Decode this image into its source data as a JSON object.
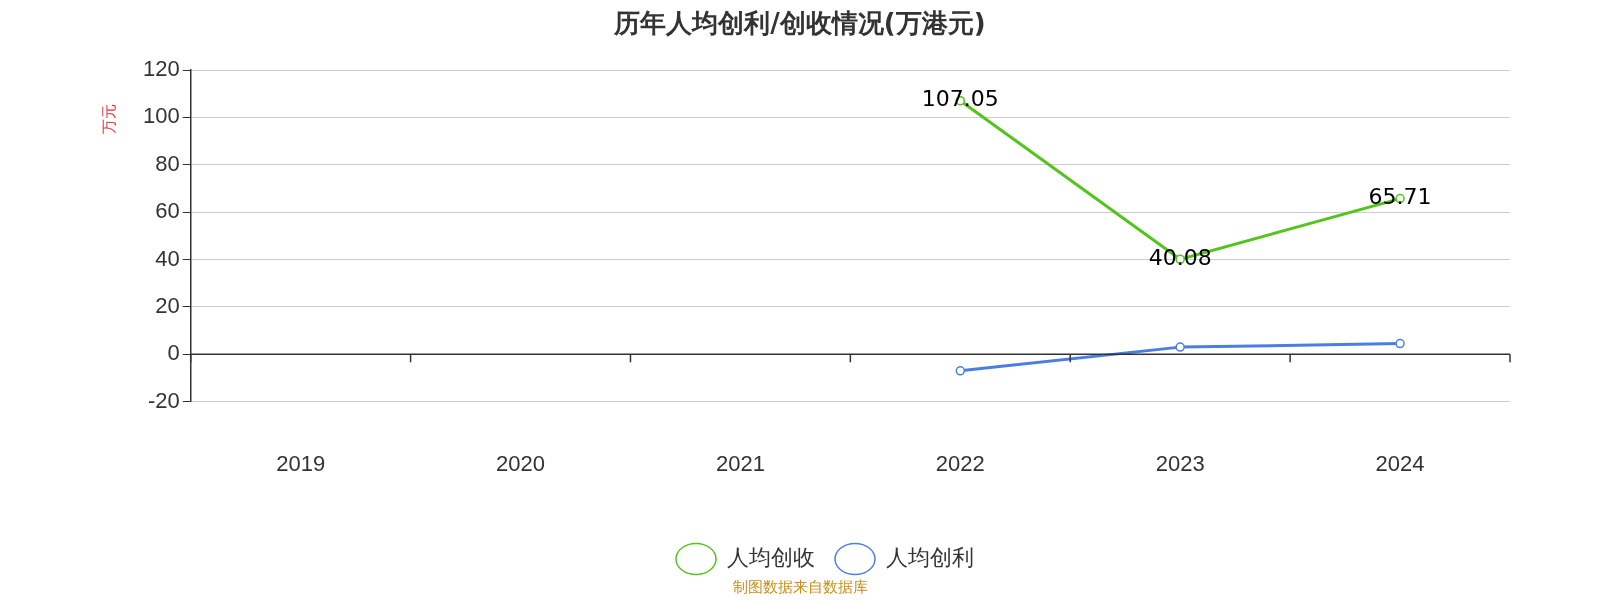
{
  "chart_data": {
    "type": "line",
    "title": "历年人均创利/创收情况(万港元)",
    "ylabel": "万元",
    "categories": [
      "2019",
      "2020",
      "2021",
      "2022",
      "2023",
      "2024"
    ],
    "series": [
      {
        "name": "人均创收",
        "color": "#52c41a",
        "values": [
          null,
          null,
          null,
          107.05,
          40.08,
          65.71
        ],
        "value_labels": [
          null,
          null,
          null,
          "107.05",
          "40.08",
          "65.71"
        ]
      },
      {
        "name": "人均创利",
        "color": "#4a7ee0",
        "values": [
          null,
          null,
          null,
          -7,
          3,
          4.5
        ]
      }
    ],
    "ylim": [
      -20,
      120
    ],
    "yticks": [
      -20,
      0,
      20,
      40,
      60,
      80,
      100,
      120
    ],
    "grid": "y",
    "legend": "bottom",
    "marker": "circle",
    "line_style": "solid",
    "annotations": [
      "制图数据来自数据库"
    ]
  }
}
